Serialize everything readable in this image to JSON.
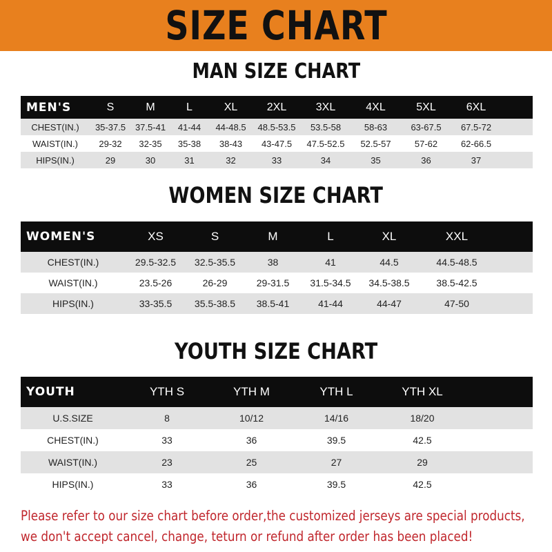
{
  "banner_title": "SIZE CHART",
  "accent_color": "#e8801e",
  "men": {
    "title": "MAN SIZE CHART",
    "header": [
      "MEN'S",
      "S",
      "M",
      "L",
      "XL",
      "2XL",
      "3XL",
      "4XL",
      "5XL",
      "6XL"
    ],
    "rows": [
      [
        "CHEST(IN.)",
        "35-37.5",
        "37.5-41",
        "41-44",
        "44-48.5",
        "48.5-53.5",
        "53.5-58",
        "58-63",
        "63-67.5",
        "67.5-72"
      ],
      [
        "WAIST(IN.)",
        "29-32",
        "32-35",
        "35-38",
        "38-43",
        "43-47.5",
        "47.5-52.5",
        "52.5-57",
        "57-62",
        "62-66.5"
      ],
      [
        "HIPS(IN.)",
        "29",
        "30",
        "31",
        "32",
        "33",
        "34",
        "35",
        "36",
        "37"
      ]
    ]
  },
  "women": {
    "title": "WOMEN SIZE CHART",
    "header": [
      "WOMEN'S",
      "XS",
      "S",
      "M",
      "L",
      "XL",
      "XXL"
    ],
    "rows": [
      [
        "CHEST(IN.)",
        "29.5-32.5",
        "32.5-35.5",
        "38",
        "41",
        "44.5",
        "44.5-48.5"
      ],
      [
        "WAIST(IN.)",
        "23.5-26",
        "26-29",
        "29-31.5",
        "31.5-34.5",
        "34.5-38.5",
        "38.5-42.5"
      ],
      [
        "HIPS(IN.)",
        "33-35.5",
        "35.5-38.5",
        "38.5-41",
        "41-44",
        "44-47",
        "47-50"
      ]
    ]
  },
  "youth": {
    "title": "YOUTH SIZE CHART",
    "header": [
      "YOUTH",
      "YTH S",
      "YTH M",
      "YTH L",
      "YTH XL"
    ],
    "rows": [
      [
        "U.S.SIZE",
        "8",
        "10/12",
        "14/16",
        "18/20"
      ],
      [
        "CHEST(IN.)",
        "33",
        "36",
        "39.5",
        "42.5"
      ],
      [
        "WAIST(IN.)",
        "23",
        "25",
        "27",
        "29"
      ],
      [
        "HIPS(IN.)",
        "33",
        "36",
        "39.5",
        "42.5"
      ]
    ]
  },
  "notice": {
    "line1": "Please refer to our size chart before order,the customized jerseys are special products,",
    "line2": "we don't accept cancel, change, teturn or refund after order has been placed!",
    "color": "#c0262c"
  }
}
